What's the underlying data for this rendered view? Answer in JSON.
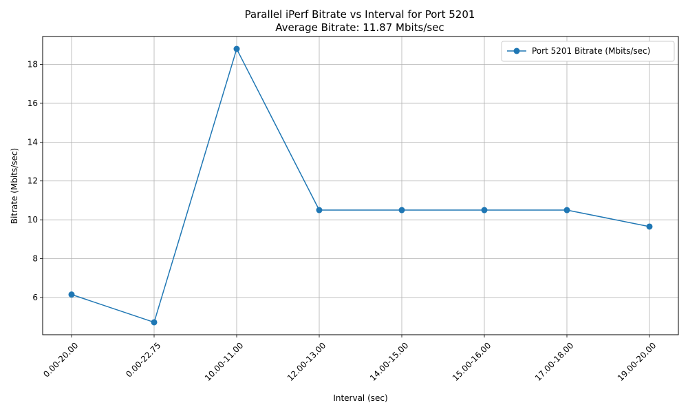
{
  "chart_data": {
    "type": "line",
    "title": "Parallel iPerf Bitrate vs Interval for Port 5201",
    "subtitle": "Average Bitrate: 11.87 Mbits/sec",
    "xlabel": "Interval (sec)",
    "ylabel": "Bitrate (Mbits/sec)",
    "categories": [
      "0.00-20.00",
      "0.00-22.75",
      "10.00-11.00",
      "12.00-13.00",
      "14.00-15.00",
      "15.00-16.00",
      "17.00-18.00",
      "19.00-20.00"
    ],
    "series": [
      {
        "name": "Port 5201 Bitrate (Mbits/sec)",
        "values": [
          6.15,
          4.72,
          18.8,
          10.5,
          10.5,
          10.5,
          10.5,
          9.65
        ],
        "color": "#1f77b4",
        "marker": "circle"
      }
    ],
    "ylim": [
      4.08,
      19.44
    ],
    "yticks": [
      6,
      8,
      10,
      12,
      14,
      16,
      18
    ],
    "xtick_rotation_deg": 45,
    "grid": true,
    "legend_position": "top-right"
  }
}
